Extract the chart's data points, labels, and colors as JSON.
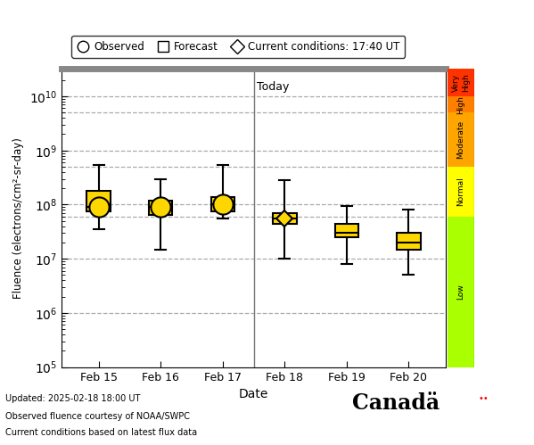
{
  "legend_observed": "Observed",
  "legend_forecast": "Forecast",
  "legend_current": "Current conditions: 17:40 UT",
  "xlabel": "Date",
  "ylabel": "Fluence (electrons/cm²-sr-day)",
  "footnote1": "Updated: 2025-02-18 18:00 UT",
  "footnote2": "Observed fluence courtesy of NOAA/SWPC",
  "footnote3": "Current conditions based on latest flux data",
  "today_label": "Today",
  "today_x": 3.5,
  "xtick_labels": [
    "Feb 15",
    "Feb 16",
    "Feb 17",
    "Feb 18",
    "Feb 19",
    "Feb 20"
  ],
  "xtick_pos": [
    1,
    2,
    3,
    4,
    5,
    6
  ],
  "color_bar": [
    {
      "color": "#FF3300",
      "label": "Very\nHigh",
      "ymin": 10000000000.0,
      "ymax": 32000000000.0
    },
    {
      "color": "#FF8000",
      "label": "High",
      "ymin": 5000000000.0,
      "ymax": 10000000000.0
    },
    {
      "color": "#FFA500",
      "label": "Moderate",
      "ymin": 500000000.0,
      "ymax": 5000000000.0
    },
    {
      "color": "#FFFF00",
      "label": "Normal",
      "ymin": 60000000.0,
      "ymax": 500000000.0
    },
    {
      "color": "#AAFF00",
      "label": "Low",
      "ymin": 100000.0,
      "ymax": 60000000.0
    }
  ],
  "obs_data": [
    {
      "x": 1,
      "median": 90000000.0,
      "q1": 75000000.0,
      "q3": 180000000.0,
      "whisker_low": 35000000.0,
      "whisker_high": 550000000.0
    },
    {
      "x": 2,
      "median": 90000000.0,
      "q1": 65000000.0,
      "q3": 120000000.0,
      "whisker_low": 15000000.0,
      "whisker_high": 300000000.0
    },
    {
      "x": 3,
      "median": 100000000.0,
      "q1": 75000000.0,
      "q3": 140000000.0,
      "whisker_low": 55000000.0,
      "whisker_high": 550000000.0
    }
  ],
  "forecast_data": [
    {
      "x": 4,
      "median": 55000000.0,
      "q1": 45000000.0,
      "q3": 70000000.0,
      "whisker_low": 10000000.0,
      "whisker_high": 280000000.0,
      "diamond": true
    },
    {
      "x": 5,
      "median": 30000000.0,
      "q1": 25000000.0,
      "q3": 45000000.0,
      "whisker_low": 8000000.0,
      "whisker_high": 95000000.0,
      "diamond": false
    },
    {
      "x": 6,
      "median": 20000000.0,
      "q1": 15000000.0,
      "q3": 30000000.0,
      "whisker_low": 5000000.0,
      "whisker_high": 80000000.0,
      "diamond": false
    }
  ],
  "box_color": "#FFD700",
  "box_edge_color": "#000000",
  "whisker_color": "#000000",
  "today_line_color": "#777777",
  "bg_color": "#FFFFFF",
  "ymin": 100000.0,
  "ymax": 32000000000.0,
  "xmin": 0.4,
  "xmax": 6.6
}
